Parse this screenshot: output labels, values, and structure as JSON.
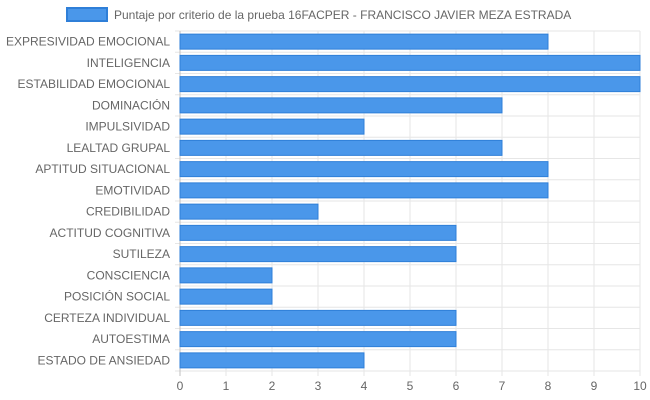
{
  "chart_data": {
    "type": "bar",
    "orientation": "horizontal",
    "categories": [
      "EXPRESIVIDAD EMOCIONAL",
      "INTELIGENCIA",
      "ESTABILIDAD EMOCIONAL",
      "DOMINACIÓN",
      "IMPULSIVIDAD",
      "LEALTAD GRUPAL",
      "APTITUD SITUACIONAL",
      "EMOTIVIDAD",
      "CREDIBILIDAD",
      "ACTITUD COGNITIVA",
      "SUTILEZA",
      "CONSCIENCIA",
      "POSICIÓN SOCIAL",
      "CERTEZA INDIVIDUAL",
      "AUTOESTIMA",
      "ESTADO DE ANSIEDAD"
    ],
    "series": [
      {
        "name": "Puntaje por criterio de la prueba 16FACPER - FRANCISCO JAVIER MEZA ESTRADA",
        "values": [
          8,
          10,
          10,
          7,
          4,
          7,
          8,
          8,
          3,
          6,
          6,
          2,
          2,
          6,
          6,
          4
        ],
        "color": "#4a97ea",
        "border_color": "#2f7fd8"
      }
    ],
    "xlim": [
      0,
      10
    ],
    "xticks": [
      0,
      1,
      2,
      3,
      4,
      5,
      6,
      7,
      8,
      9,
      10
    ],
    "grid": true,
    "legend_position": "top"
  }
}
